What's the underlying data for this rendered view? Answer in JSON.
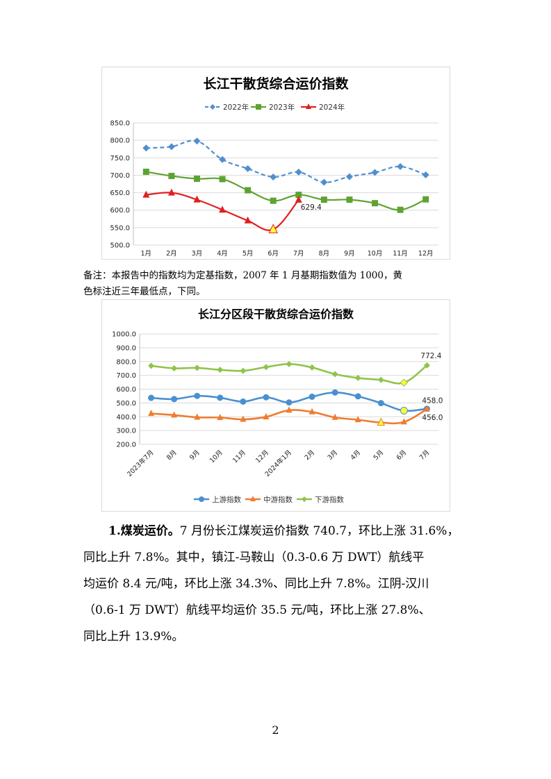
{
  "chart_data": [
    {
      "type": "line",
      "title": "长江干散货综合运价指数",
      "categories": [
        "1月",
        "2月",
        "3月",
        "4月",
        "5月",
        "6月",
        "7月",
        "8月",
        "9月",
        "10月",
        "11月",
        "12月"
      ],
      "ylim": [
        500,
        850
      ],
      "yticks": [
        "500.0",
        "550.0",
        "600.0",
        "650.0",
        "700.0",
        "750.0",
        "800.0",
        "850.0"
      ],
      "grid": true,
      "legend_position": "top",
      "series": [
        {
          "name": "2022年",
          "color": "#4f8fd0",
          "dashed": true,
          "marker": "diamond",
          "values": [
            778,
            782,
            798,
            745,
            719,
            695,
            709,
            680,
            696,
            708,
            725,
            701
          ]
        },
        {
          "name": "2023年",
          "color": "#5ea331",
          "dashed": false,
          "marker": "square",
          "values": [
            710,
            698,
            690,
            689,
            657,
            627,
            644,
            630,
            630,
            620,
            601,
            631
          ]
        },
        {
          "name": "2024年",
          "color": "#e02020",
          "dashed": false,
          "marker": "triangle",
          "values": [
            644,
            650,
            630,
            601,
            570,
            545,
            629.4,
            null,
            null,
            null,
            null,
            null
          ]
        }
      ],
      "lowpoint": {
        "series": 2,
        "index": 5
      },
      "annotations": [
        {
          "series": 2,
          "index": 6,
          "text": "629.4"
        }
      ]
    },
    {
      "type": "line",
      "title": "长江分区段干散货综合运价指数",
      "categories": [
        "2023年7月",
        "8月",
        "9月",
        "10月",
        "11月",
        "12月",
        "2024年1月",
        "2月",
        "3月",
        "4月",
        "5月",
        "6月",
        "7月"
      ],
      "ylim": [
        200,
        1000
      ],
      "yticks": [
        "200.0",
        "300.0",
        "400.0",
        "500.0",
        "600.0",
        "700.0",
        "800.0",
        "900.0",
        "1000.0"
      ],
      "grid": true,
      "legend_position": "bottom",
      "series": [
        {
          "name": "上游指数",
          "color": "#4a90cf",
          "marker": "circle",
          "values": [
            537,
            528,
            551,
            538,
            510,
            541,
            504,
            545,
            576,
            548,
            499,
            444,
            458.0
          ]
        },
        {
          "name": "中游指数",
          "color": "#ee7d31",
          "marker": "triangle",
          "values": [
            423,
            412,
            396,
            394,
            381,
            399,
            447,
            435,
            395,
            378,
            358,
            362,
            456.0
          ]
        },
        {
          "name": "下游指数",
          "color": "#8fc44b",
          "marker": "diamond",
          "values": [
            769,
            751,
            754,
            740,
            733,
            760,
            782,
            757,
            709,
            681,
            667,
            647,
            772.4
          ]
        }
      ],
      "lowpoints": [
        {
          "series": 0,
          "index": 11
        },
        {
          "series": 1,
          "index": 10
        },
        {
          "series": 2,
          "index": 11
        }
      ],
      "annotations": [
        {
          "series": 2,
          "index": 12,
          "text": "772.4",
          "pos": "above"
        },
        {
          "series": 0,
          "index": 12,
          "text": "458.0",
          "pos": "upper-right"
        },
        {
          "series": 1,
          "index": 12,
          "text": "456.0",
          "pos": "lower-right"
        }
      ]
    }
  ],
  "note": {
    "line1": "备注：本报告中的指数均为定基指数，2007 年 1 月基期指数值为 1000，黄",
    "line2": "色标注近三年最低点，下同。"
  },
  "paragraph": {
    "lead": "1.煤炭运价。",
    "line1": "7 月份长江煤炭运价指数 740.7，环比上涨 31.6%，",
    "line2": "同比上升 7.8%。其中，镇江-马鞍山（0.3-0.6 万 DWT）航线平",
    "line3": "均运价 8.4 元/吨，环比上涨 34.3%、同比上升 7.8%。江阴-汉川",
    "line4": "（0.6-1 万 DWT）航线平均运价 35.5 元/吨，环比上涨 27.8%、",
    "line5": "同比上升 13.9%。"
  },
  "page_number": "2"
}
